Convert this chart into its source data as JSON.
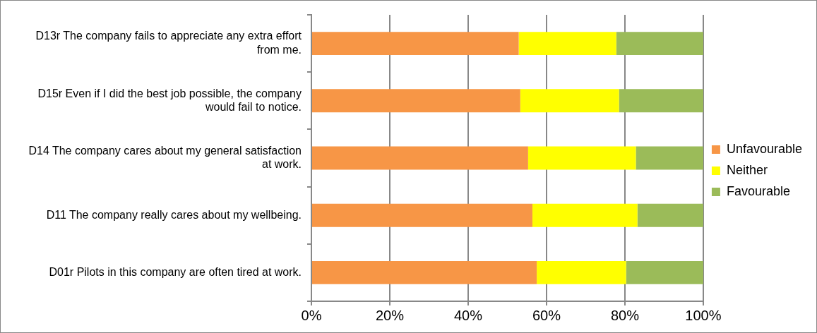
{
  "chart_data": {
    "type": "bar",
    "orientation": "horizontal",
    "stacked": true,
    "categories": [
      "D13r The company fails to appreciate any extra effort from me.",
      "D15r Even if I did the best job possible, the company would fail to notice.",
      "D14 The company cares about my general satisfaction at work.",
      "D11 The company really cares about my wellbeing.",
      "D01r Pilots in this company are often tired at work."
    ],
    "series": [
      {
        "name": "Unfavourable",
        "color": "#f79646",
        "values": [
          52.9,
          53.3,
          55.3,
          56.4,
          57.5
        ]
      },
      {
        "name": "Neither",
        "color": "#ffff00",
        "values": [
          24.9,
          25.2,
          27.5,
          26.8,
          22.8
        ]
      },
      {
        "name": "Favourable",
        "color": "#9bbb59",
        "values": [
          22.2,
          21.5,
          17.2,
          16.8,
          19.7
        ]
      }
    ],
    "xlim": [
      0,
      100
    ],
    "xticks": [
      {
        "value": 0,
        "label": "0%"
      },
      {
        "value": 20,
        "label": "20%"
      },
      {
        "value": 40,
        "label": "40%"
      },
      {
        "value": 60,
        "label": "60%"
      },
      {
        "value": 80,
        "label": "80%"
      },
      {
        "value": 100,
        "label": "100%"
      }
    ],
    "grid": "x",
    "legend": "right"
  }
}
